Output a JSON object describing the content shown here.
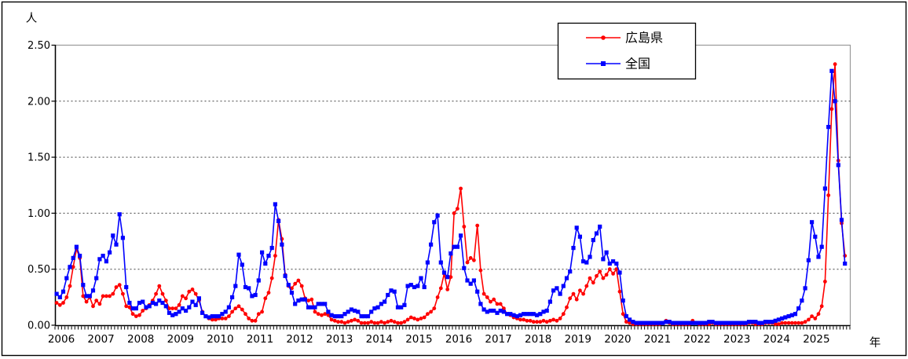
{
  "chart_data": {
    "type": "line",
    "title": "",
    "ylabel": "人",
    "xlabel": "年",
    "ylim": [
      0,
      2.5
    ],
    "ytick_step": 0.5,
    "ytick_labels": [
      "0.00",
      "0.50",
      "1.00",
      "1.50",
      "2.00",
      "2.50"
    ],
    "grid": "horizontal-dashed",
    "legend_position": "top-center",
    "x_unit": "month",
    "x_start": "2006-01",
    "x_end": "2025-11",
    "year_labels": [
      "2006",
      "2007",
      "2008",
      "2009",
      "2010",
      "2011",
      "2012",
      "2013",
      "2014",
      "2015",
      "2016",
      "2017",
      "2018",
      "2019",
      "2020",
      "2021",
      "2022",
      "2023",
      "2024",
      "2025"
    ],
    "colors": {
      "hiroshima": "#FF0000",
      "national": "#0000FF",
      "gridline": "#404040",
      "plot_border": "#9a9a9a",
      "axis": "#000000",
      "outer_border": "#000000",
      "background": "#FFFFFF"
    },
    "series": [
      {
        "name": "広島県",
        "color": "#FF0000",
        "marker": "circle",
        "values": [
          0.2,
          0.18,
          0.2,
          0.25,
          0.35,
          0.52,
          0.68,
          0.6,
          0.26,
          0.21,
          0.25,
          0.17,
          0.22,
          0.19,
          0.26,
          0.26,
          0.26,
          0.28,
          0.34,
          0.36,
          0.28,
          0.17,
          0.16,
          0.1,
          0.08,
          0.09,
          0.13,
          0.15,
          0.18,
          0.22,
          0.28,
          0.35,
          0.28,
          0.22,
          0.15,
          0.15,
          0.15,
          0.18,
          0.26,
          0.24,
          0.3,
          0.32,
          0.28,
          0.22,
          0.12,
          0.08,
          0.06,
          0.05,
          0.05,
          0.06,
          0.06,
          0.06,
          0.08,
          0.12,
          0.15,
          0.17,
          0.14,
          0.1,
          0.06,
          0.04,
          0.04,
          0.1,
          0.12,
          0.24,
          0.29,
          0.42,
          0.62,
          0.94,
          0.77,
          0.45,
          0.35,
          0.33,
          0.37,
          0.4,
          0.35,
          0.24,
          0.22,
          0.23,
          0.12,
          0.1,
          0.09,
          0.1,
          0.09,
          0.05,
          0.04,
          0.03,
          0.03,
          0.02,
          0.03,
          0.04,
          0.05,
          0.04,
          0.02,
          0.02,
          0.02,
          0.03,
          0.02,
          0.02,
          0.03,
          0.02,
          0.03,
          0.04,
          0.03,
          0.02,
          0.02,
          0.03,
          0.05,
          0.07,
          0.06,
          0.05,
          0.06,
          0.07,
          0.1,
          0.12,
          0.15,
          0.25,
          0.33,
          0.46,
          0.32,
          0.43,
          1.0,
          1.04,
          1.22,
          0.88,
          0.56,
          0.6,
          0.58,
          0.89,
          0.49,
          0.28,
          0.25,
          0.21,
          0.23,
          0.19,
          0.19,
          0.15,
          0.1,
          0.09,
          0.07,
          0.06,
          0.05,
          0.05,
          0.04,
          0.04,
          0.03,
          0.03,
          0.03,
          0.04,
          0.03,
          0.04,
          0.05,
          0.04,
          0.06,
          0.1,
          0.16,
          0.24,
          0.28,
          0.23,
          0.31,
          0.28,
          0.35,
          0.42,
          0.38,
          0.44,
          0.48,
          0.42,
          0.45,
          0.5,
          0.46,
          0.5,
          0.3,
          0.1,
          0.03,
          0.02,
          0.01,
          0.01,
          0.01,
          0.01,
          0.01,
          0.01,
          0.01,
          0.01,
          0.01,
          0.02,
          0.04,
          0.02,
          0.01,
          0.01,
          0.01,
          0.01,
          0.01,
          0.01,
          0.04,
          0.02,
          0.01,
          0.01,
          0.01,
          0.01,
          0.02,
          0.01,
          0.01,
          0.01,
          0.01,
          0.01,
          0.01,
          0.01,
          0.01,
          0.01,
          0.01,
          0.02,
          0.02,
          0.01,
          0.01,
          0.01,
          0.02,
          0.02,
          0.02,
          0.01,
          0.01,
          0.02,
          0.02,
          0.02,
          0.02,
          0.02,
          0.02,
          0.02,
          0.03,
          0.05,
          0.08,
          0.06,
          0.1,
          0.17,
          0.39,
          1.16,
          1.93,
          2.33,
          1.47,
          0.91,
          0.62
        ]
      },
      {
        "name": "全国",
        "color": "#0000FF",
        "marker": "square",
        "values": [
          0.28,
          0.25,
          0.3,
          0.42,
          0.52,
          0.6,
          0.7,
          0.62,
          0.36,
          0.26,
          0.26,
          0.31,
          0.42,
          0.59,
          0.62,
          0.57,
          0.65,
          0.8,
          0.72,
          0.99,
          0.78,
          0.34,
          0.2,
          0.15,
          0.15,
          0.2,
          0.21,
          0.16,
          0.17,
          0.2,
          0.19,
          0.22,
          0.2,
          0.17,
          0.11,
          0.09,
          0.1,
          0.12,
          0.15,
          0.13,
          0.16,
          0.21,
          0.18,
          0.24,
          0.11,
          0.08,
          0.07,
          0.08,
          0.08,
          0.08,
          0.1,
          0.12,
          0.16,
          0.25,
          0.35,
          0.63,
          0.54,
          0.34,
          0.33,
          0.26,
          0.27,
          0.4,
          0.65,
          0.55,
          0.62,
          0.69,
          1.08,
          0.93,
          0.72,
          0.44,
          0.36,
          0.29,
          0.19,
          0.22,
          0.23,
          0.23,
          0.16,
          0.16,
          0.16,
          0.19,
          0.19,
          0.19,
          0.12,
          0.09,
          0.08,
          0.08,
          0.08,
          0.1,
          0.12,
          0.14,
          0.13,
          0.12,
          0.08,
          0.08,
          0.08,
          0.12,
          0.15,
          0.16,
          0.19,
          0.21,
          0.27,
          0.31,
          0.3,
          0.16,
          0.16,
          0.18,
          0.35,
          0.36,
          0.34,
          0.35,
          0.42,
          0.34,
          0.56,
          0.72,
          0.92,
          0.98,
          0.56,
          0.47,
          0.43,
          0.64,
          0.7,
          0.7,
          0.8,
          0.51,
          0.4,
          0.37,
          0.4,
          0.3,
          0.19,
          0.14,
          0.12,
          0.13,
          0.13,
          0.11,
          0.13,
          0.12,
          0.1,
          0.1,
          0.09,
          0.08,
          0.09,
          0.1,
          0.1,
          0.1,
          0.1,
          0.09,
          0.1,
          0.12,
          0.13,
          0.21,
          0.31,
          0.33,
          0.28,
          0.35,
          0.42,
          0.48,
          0.69,
          0.87,
          0.79,
          0.57,
          0.56,
          0.61,
          0.76,
          0.82,
          0.88,
          0.59,
          0.65,
          0.55,
          0.57,
          0.55,
          0.47,
          0.22,
          0.08,
          0.05,
          0.03,
          0.02,
          0.02,
          0.02,
          0.02,
          0.02,
          0.02,
          0.02,
          0.02,
          0.02,
          0.03,
          0.03,
          0.02,
          0.02,
          0.02,
          0.02,
          0.02,
          0.02,
          0.02,
          0.02,
          0.02,
          0.02,
          0.02,
          0.03,
          0.03,
          0.02,
          0.02,
          0.02,
          0.02,
          0.02,
          0.02,
          0.02,
          0.02,
          0.02,
          0.02,
          0.03,
          0.03,
          0.03,
          0.02,
          0.02,
          0.03,
          0.03,
          0.03,
          0.04,
          0.05,
          0.06,
          0.07,
          0.08,
          0.09,
          0.1,
          0.15,
          0.22,
          0.33,
          0.58,
          0.92,
          0.79,
          0.61,
          0.7,
          1.22,
          1.77,
          2.27,
          2.0,
          1.43,
          0.94,
          0.55
        ]
      }
    ],
    "legend": {
      "items": [
        {
          "label": "広島県",
          "marker": "circle",
          "color": "#FF0000"
        },
        {
          "label": "全国",
          "marker": "square",
          "color": "#0000FF"
        }
      ]
    }
  }
}
